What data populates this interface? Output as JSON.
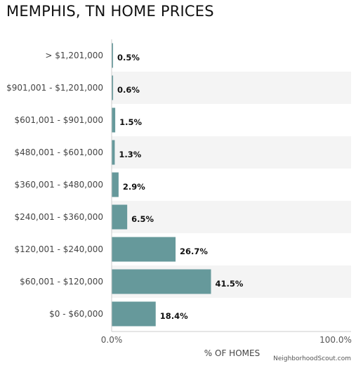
{
  "chart_data": {
    "type": "bar",
    "orientation": "horizontal",
    "title": "MEMPHIS, TN HOME PRICES",
    "xlabel": "% OF HOMES",
    "ylabel": "",
    "xlim": [
      0,
      100
    ],
    "unit": "%",
    "categories": [
      "> $1,201,000",
      "$901,001 - $1,201,000",
      "$601,001 - $901,000",
      "$480,001 - $601,000",
      "$360,001 - $480,000",
      "$240,001 - $360,000",
      "$120,001 - $240,000",
      "$60,001 - $120,000",
      "$0 - $60,000"
    ],
    "values": [
      0.5,
      0.6,
      1.5,
      1.3,
      2.9,
      6.5,
      26.7,
      41.5,
      18.4
    ],
    "value_labels": [
      "0.5%",
      "0.6%",
      "1.5%",
      "1.3%",
      "2.9%",
      "6.5%",
      "26.7%",
      "41.5%",
      "18.4%"
    ],
    "x_tick_labels": [
      "0.0%",
      "100.0%"
    ],
    "grid": false,
    "legend": "none",
    "bar_color": "#66999b",
    "stripe_color": "#f4f4f4",
    "credit": "NeighborhoodScout.com"
  }
}
